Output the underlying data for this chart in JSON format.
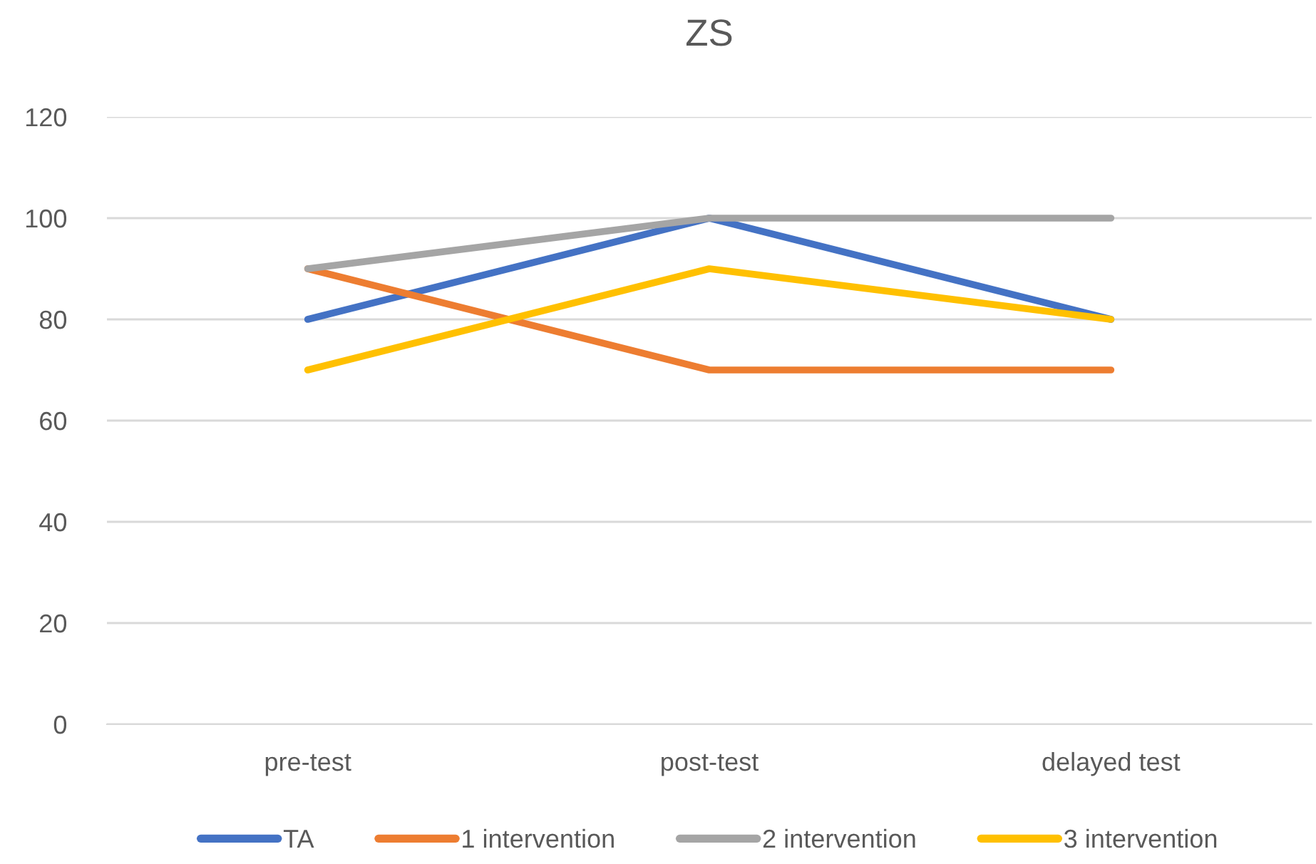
{
  "chart_data": {
    "type": "line",
    "title": "ZS",
    "categories": [
      "pre-test",
      "post-test",
      "delayed test"
    ],
    "series": [
      {
        "name": "TA",
        "color": "#4472c4",
        "values": [
          80,
          100,
          80
        ]
      },
      {
        "name": "1 intervention",
        "color": "#ed7d31",
        "values": [
          90,
          70,
          70
        ]
      },
      {
        "name": "2 intervention",
        "color": "#a5a5a5",
        "values": [
          90,
          100,
          100
        ]
      },
      {
        "name": "3 intervention",
        "color": "#ffc000",
        "values": [
          70,
          90,
          80
        ]
      }
    ],
    "ylim": [
      0,
      120
    ],
    "yticks": [
      0,
      20,
      40,
      60,
      80,
      100,
      120
    ],
    "grid": "y",
    "legend": "bottom",
    "marker": "none",
    "line_style": "solid"
  }
}
